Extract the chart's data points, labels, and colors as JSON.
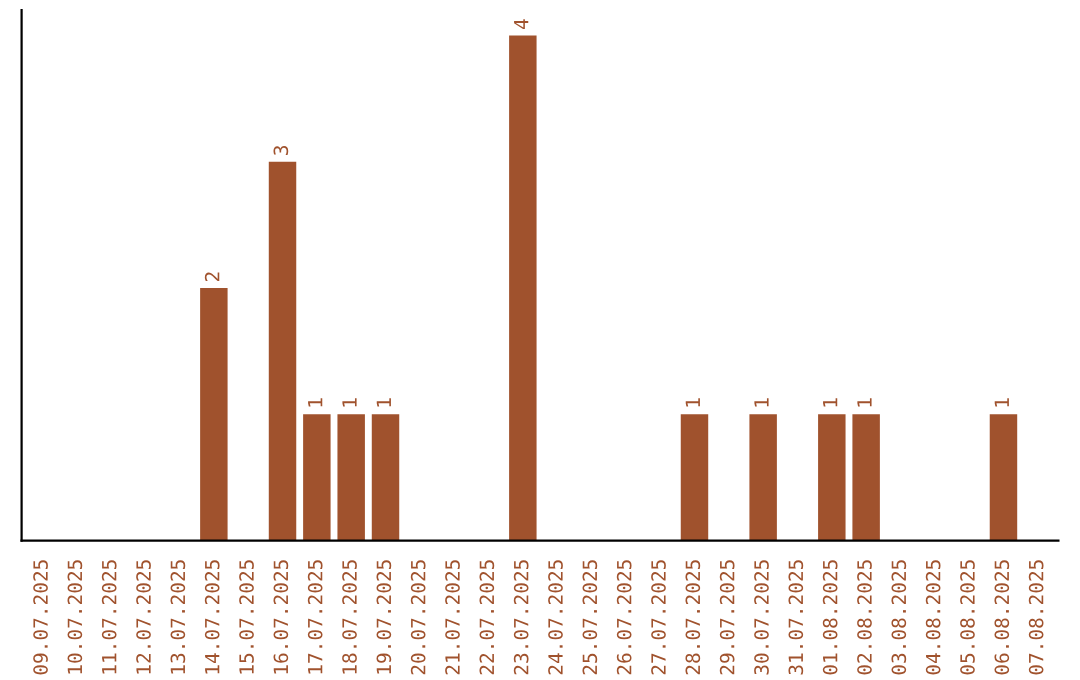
{
  "chart_data": {
    "type": "bar",
    "categories": [
      "09.07.2025",
      "10.07.2025",
      "11.07.2025",
      "12.07.2025",
      "13.07.2025",
      "14.07.2025",
      "15.07.2025",
      "16.07.2025",
      "17.07.2025",
      "18.07.2025",
      "19.07.2025",
      "20.07.2025",
      "21.07.2025",
      "22.07.2025",
      "23.07.2025",
      "24.07.2025",
      "25.07.2025",
      "26.07.2025",
      "27.07.2025",
      "28.07.2025",
      "29.07.2025",
      "30.07.2025",
      "31.07.2025",
      "01.08.2025",
      "02.08.2025",
      "03.08.2025",
      "04.08.2025",
      "05.08.2025",
      "06.08.2025",
      "07.08.2025"
    ],
    "values": [
      0,
      0,
      0,
      0,
      0,
      2,
      0,
      3,
      1,
      1,
      1,
      0,
      0,
      0,
      4,
      0,
      0,
      0,
      0,
      1,
      0,
      1,
      0,
      1,
      1,
      0,
      0,
      0,
      1,
      0
    ],
    "value_labels": [
      null,
      null,
      null,
      null,
      null,
      "2",
      null,
      "3",
      "1",
      "1",
      "1",
      null,
      null,
      null,
      "4",
      null,
      null,
      null,
      null,
      "1",
      null,
      "1",
      null,
      "1",
      "1",
      null,
      null,
      null,
      "1",
      null
    ],
    "color": "#a0522d",
    "ylim": [
      0,
      4.2
    ],
    "tick_labels": "x",
    "grid": false,
    "legend": false
  }
}
